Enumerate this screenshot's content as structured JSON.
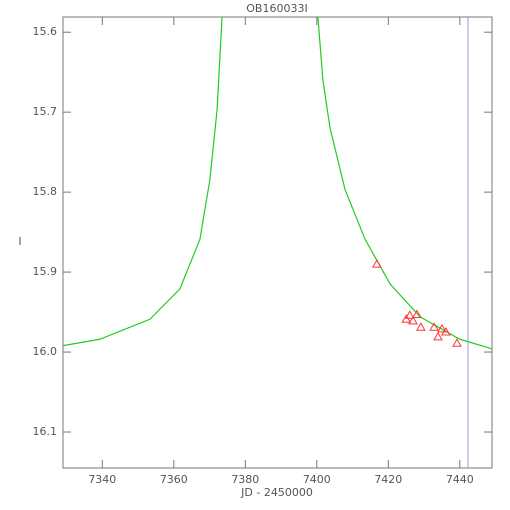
{
  "chart_data": {
    "type": "scatter",
    "title": "OB160033I",
    "xlabel": "JD - 2450000",
    "ylabel": "I",
    "xlim": [
      7329,
      7449
    ],
    "ylim": [
      16.145,
      15.581
    ],
    "y_inverted": true,
    "xticks": [
      7340,
      7360,
      7380,
      7400,
      7420,
      7440
    ],
    "yticks": [
      15.6,
      15.7,
      15.8,
      15.9,
      {
        "value": 16,
        "label": "16.0"
      },
      16.1
    ],
    "series": [
      {
        "mode": "line",
        "color": "#22cc22",
        "x": [
          7329,
          7339.3,
          7353.3,
          7361.7,
          7367.3,
          7370.1,
          7372.1,
          7373.5,
          null,
          7400.3,
          7401.7,
          7403.7,
          7407.9,
          7413.5,
          7420.5,
          7428.9,
          7440,
          7449
        ],
        "values": [
          15.992,
          15.984,
          15.959,
          15.921,
          15.859,
          15.784,
          15.697,
          15.581,
          null,
          15.581,
          15.66,
          15.72,
          15.797,
          15.859,
          15.915,
          15.956,
          15.984,
          15.996
        ]
      },
      {
        "mode": "markers",
        "color": "#ff3333",
        "x": [
          7416.8,
          7425,
          7426,
          7426.9,
          7428,
          7429.1,
          7432.8,
          7433.9,
          7435,
          7436.1,
          7439.2
        ],
        "values": [
          15.89,
          15.959,
          15.954,
          15.961,
          15.953,
          15.969,
          15.969,
          15.981,
          15.971,
          15.975,
          15.989
        ]
      }
    ],
    "vline": {
      "x": 7442.3,
      "color": "#9999ee"
    }
  }
}
